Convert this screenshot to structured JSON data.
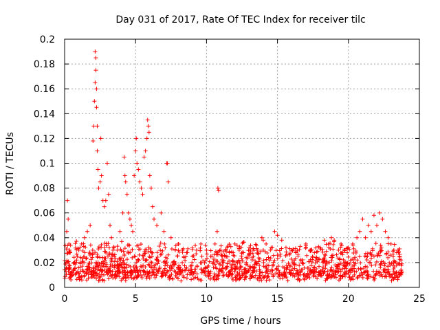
{
  "chart_data": {
    "type": "scatter",
    "title": "Day 031 of 2017, Rate Of TEC Index for receiver tilc",
    "xlabel": "GPS time / hours",
    "ylabel": "ROTI / TECUs",
    "xlim": [
      0,
      25
    ],
    "ylim": [
      0,
      0.2
    ],
    "xticks": [
      0,
      5,
      10,
      15,
      20,
      25
    ],
    "xtick_labels": [
      "0",
      "5",
      "10",
      "15",
      "20",
      "25"
    ],
    "yticks": [
      0,
      0.02,
      0.04,
      0.06,
      0.08,
      0.1,
      0.12,
      0.14,
      0.16,
      0.18,
      0.2
    ],
    "ytick_labels": [
      "0",
      "0.02",
      "0.04",
      "0.06",
      "0.08",
      "0.1",
      "0.12",
      "0.14",
      "0.16",
      "0.18",
      "0.2"
    ],
    "grid": true,
    "marker": "+",
    "marker_color": "#ff0000",
    "series": [
      {
        "name": "ROTI",
        "x": [
          0.1,
          0.15,
          0.2,
          0.25,
          0.3,
          0.35,
          0.3,
          0.35,
          0.5,
          0.7,
          0.9,
          1.0,
          1.2,
          1.4,
          1.6,
          1.8,
          2.0,
          2.05,
          2.1,
          2.15,
          2.15,
          2.2,
          2.2,
          2.25,
          2.25,
          2.3,
          2.3,
          2.35,
          2.4,
          2.5,
          2.55,
          2.6,
          2.7,
          2.8,
          2.9,
          3.0,
          3.1,
          3.2,
          3.3,
          3.4,
          3.5,
          3.7,
          3.9,
          4.1,
          4.2,
          4.25,
          4.3,
          4.4,
          4.5,
          4.6,
          4.7,
          4.8,
          4.9,
          5.0,
          5.05,
          5.1,
          5.2,
          5.3,
          5.4,
          5.5,
          5.6,
          5.7,
          5.8,
          5.85,
          5.9,
          5.95,
          6.0,
          6.1,
          6.2,
          6.3,
          6.5,
          6.8,
          7.0,
          7.2,
          7.25,
          7.3,
          7.5,
          7.8,
          8.0,
          8.3,
          8.6,
          9.0,
          9.3,
          9.6,
          10.0,
          10.3,
          10.6,
          10.75,
          10.8,
          10.85,
          11.0,
          11.3,
          11.6,
          12.0,
          12.3,
          12.6,
          13.0,
          13.3,
          13.6,
          13.9,
          14.0,
          14.2,
          14.5,
          14.8,
          15.0,
          15.3,
          15.6,
          16.0,
          16.3,
          16.6,
          17.0,
          17.3,
          17.6,
          18.0,
          18.3,
          18.6,
          18.8,
          19.0,
          19.3,
          19.6,
          20.0,
          20.3,
          20.6,
          20.8,
          21.0,
          21.2,
          21.4,
          21.6,
          21.8,
          22.0,
          22.2,
          22.4,
          22.6,
          22.8,
          23.0,
          23.2,
          23.4,
          23.6,
          23.7
        ],
        "y": [
          0.02,
          0.045,
          0.07,
          0.055,
          0.035,
          0.03,
          0.018,
          0.015,
          0.012,
          0.02,
          0.025,
          0.03,
          0.035,
          0.04,
          0.045,
          0.05,
          0.118,
          0.13,
          0.15,
          0.165,
          0.19,
          0.185,
          0.175,
          0.16,
          0.145,
          0.13,
          0.11,
          0.095,
          0.08,
          0.085,
          0.12,
          0.09,
          0.07,
          0.065,
          0.07,
          0.1,
          0.075,
          0.05,
          0.04,
          0.03,
          0.025,
          0.03,
          0.045,
          0.06,
          0.105,
          0.09,
          0.085,
          0.075,
          0.06,
          0.055,
          0.05,
          0.045,
          0.09,
          0.11,
          0.12,
          0.1,
          0.095,
          0.085,
          0.08,
          0.075,
          0.105,
          0.11,
          0.12,
          0.135,
          0.13,
          0.125,
          0.09,
          0.08,
          0.065,
          0.055,
          0.05,
          0.06,
          0.045,
          0.1,
          0.1,
          0.085,
          0.04,
          0.03,
          0.035,
          0.03,
          0.028,
          0.025,
          0.03,
          0.035,
          0.03,
          0.025,
          0.035,
          0.045,
          0.08,
          0.078,
          0.03,
          0.025,
          0.028,
          0.035,
          0.03,
          0.028,
          0.032,
          0.025,
          0.03,
          0.04,
          0.038,
          0.035,
          0.03,
          0.045,
          0.042,
          0.038,
          0.032,
          0.03,
          0.028,
          0.033,
          0.035,
          0.03,
          0.028,
          0.032,
          0.038,
          0.035,
          0.04,
          0.038,
          0.03,
          0.028,
          0.032,
          0.035,
          0.04,
          0.045,
          0.055,
          0.04,
          0.05,
          0.045,
          0.058,
          0.05,
          0.06,
          0.055,
          0.045,
          0.04,
          0.035,
          0.03,
          0.028,
          0.025,
          0.022
        ]
      }
    ],
    "baseline_band": {
      "x_range": [
        0,
        23.8
      ],
      "y_range": [
        0.005,
        0.03
      ],
      "note": "dense band of ROTI values between about 0.005 and 0.03 TECUs throughout the day"
    }
  }
}
